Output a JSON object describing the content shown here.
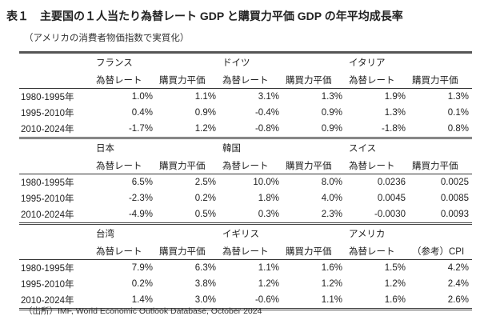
{
  "title": "表１　主要国の１人当たり為替レート GDP と購買力平価 GDP の年平均成長率",
  "subtitle": "（アメリカの消費者物価指数で実質化）",
  "source": "（出所）IMF, World Economic Outlook Database, October 2024",
  "blocks": [
    {
      "countries": [
        "フランス",
        "ドイツ",
        "イタリア"
      ],
      "headers": [
        "為替レート",
        "購買力平価",
        "為替レート",
        "購買力平価",
        "為替レート",
        "購買力平価"
      ],
      "rows": [
        {
          "period": "1980-1995年",
          "values": [
            "1.0%",
            "1.1%",
            "3.1%",
            "1.3%",
            "1.9%",
            "1.3%"
          ]
        },
        {
          "period": "1995-2010年",
          "values": [
            "0.4%",
            "0.9%",
            "-0.4%",
            "0.9%",
            "1.3%",
            "0.1%"
          ]
        },
        {
          "period": "2010-2024年",
          "values": [
            "-1.7%",
            "1.2%",
            "-0.8%",
            "0.9%",
            "-1.8%",
            "0.8%"
          ]
        }
      ]
    },
    {
      "countries": [
        "日本",
        "韓国",
        "スイス"
      ],
      "headers": [
        "為替レート",
        "購買力平価",
        "為替レート",
        "購買力平価",
        "為替レート",
        "購買力平価"
      ],
      "rows": [
        {
          "period": "1980-1995年",
          "values": [
            "6.5%",
            "2.5%",
            "10.0%",
            "8.0%",
            "0.0236",
            "0.0025"
          ]
        },
        {
          "period": "1995-2010年",
          "values": [
            "-2.3%",
            "0.2%",
            "1.8%",
            "4.0%",
            "0.0045",
            "0.0085"
          ]
        },
        {
          "period": "2010-2024年",
          "values": [
            "-4.9%",
            "0.5%",
            "0.3%",
            "2.3%",
            "-0.0030",
            "0.0093"
          ]
        }
      ]
    },
    {
      "countries": [
        "台湾",
        "イギリス",
        "アメリカ"
      ],
      "headers": [
        "為替レート",
        "購買力平価",
        "為替レート",
        "購買力平価",
        "為替レート",
        "（参考）CPI"
      ],
      "rows": [
        {
          "period": "1980-1995年",
          "values": [
            "7.9%",
            "6.3%",
            "1.1%",
            "1.6%",
            "1.5%",
            "4.2%"
          ]
        },
        {
          "period": "1995-2010年",
          "values": [
            "0.2%",
            "3.8%",
            "1.2%",
            "1.2%",
            "1.2%",
            "2.4%"
          ]
        },
        {
          "period": "2010-2024年",
          "values": [
            "1.4%",
            "3.0%",
            "-0.6%",
            "1.1%",
            "1.6%",
            "2.6%"
          ]
        }
      ]
    }
  ]
}
